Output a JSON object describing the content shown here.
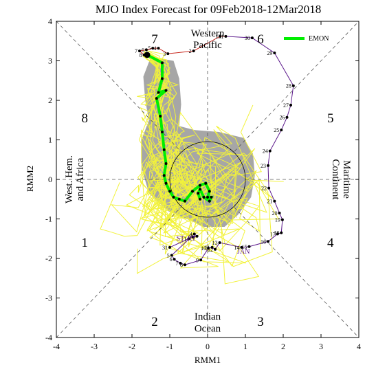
{
  "chart_data": {
    "type": "scatter",
    "title": "MJO Index Forecast for 09Feb2018-12Mar2018",
    "xlabel": "RMM1",
    "ylabel": "RMM2",
    "xlim": [
      -4,
      4
    ],
    "ylim": [
      -4,
      4
    ],
    "xticks": [
      "-4",
      "-3",
      "-2",
      "-1",
      "0",
      "1",
      "2",
      "3",
      "4"
    ],
    "yticks": [
      "-4",
      "-3",
      "-2",
      "-1",
      "0",
      "1",
      "2",
      "3",
      "4"
    ],
    "phases": [
      {
        "label": "1",
        "x": -3.25,
        "y": -1.6
      },
      {
        "label": "2",
        "x": -1.4,
        "y": -3.6
      },
      {
        "label": "3",
        "x": 1.4,
        "y": -3.6
      },
      {
        "label": "4",
        "x": 3.25,
        "y": -1.6
      },
      {
        "label": "5",
        "x": 3.25,
        "y": 1.55
      },
      {
        "label": "6",
        "x": 1.4,
        "y": 3.55
      },
      {
        "label": "7",
        "x": -1.4,
        "y": 3.55
      },
      {
        "label": "8",
        "x": -3.25,
        "y": 1.55
      }
    ],
    "regions": {
      "top": [
        "Western",
        "Pacific"
      ],
      "bottom": [
        "Indian",
        "Ocean"
      ],
      "left": [
        "West. Hem.",
        "and Africa"
      ],
      "right": [
        "Maritime",
        "Continent"
      ]
    },
    "legend": {
      "label": "EMON",
      "color": "#00ee00",
      "position": "top-right"
    },
    "month_labels": [
      {
        "text": "JAN",
        "x": 0.95,
        "y": -1.88
      },
      {
        "text": "ST",
        "x": -0.72,
        "y": -1.55
      },
      {
        "text": "RT",
        "x": -0.42,
        "y": -1.55
      }
    ],
    "observed": {
      "name": "observed",
      "colors": [
        "#5c1a8c",
        "#c8281e"
      ],
      "points": [
        {
          "label": "31",
          "x": -1.0,
          "y": -1.72
        },
        {
          "label": "1",
          "x": -0.5,
          "y": -1.5
        },
        {
          "label": "2",
          "x": -0.38,
          "y": -1.46
        },
        {
          "label": "3",
          "x": -0.28,
          "y": -1.44
        },
        {
          "label": "4",
          "x": -0.35,
          "y": -1.38
        },
        {
          "label": "5",
          "x": -0.95,
          "y": -1.92
        },
        {
          "label": "6",
          "x": -0.88,
          "y": -2.02
        },
        {
          "label": "7",
          "x": -0.72,
          "y": -2.12
        },
        {
          "label": "8",
          "x": -0.6,
          "y": -2.16
        },
        {
          "label": "9",
          "x": -0.18,
          "y": -2.04
        },
        {
          "label": "10",
          "x": 0.02,
          "y": -1.74
        },
        {
          "label": "11",
          "x": 0.12,
          "y": -1.72
        },
        {
          "label": "12",
          "x": 0.2,
          "y": -1.77
        },
        {
          "label": "13",
          "x": 0.32,
          "y": -1.6
        },
        {
          "label": "14",
          "x": 0.9,
          "y": -1.72
        },
        {
          "label": "15",
          "x": 1.1,
          "y": -1.7
        },
        {
          "label": "16",
          "x": 1.6,
          "y": -1.57
        },
        {
          "label": "17",
          "x": 1.85,
          "y": -1.38
        },
        {
          "label": "18",
          "x": 1.95,
          "y": -1.35
        },
        {
          "label": "19",
          "x": 1.98,
          "y": -1.02
        },
        {
          "label": "20",
          "x": 1.9,
          "y": -0.85
        },
        {
          "label": "21",
          "x": 1.77,
          "y": -0.55
        },
        {
          "label": "22",
          "x": 1.62,
          "y": -0.22
        },
        {
          "label": "23",
          "x": 1.6,
          "y": 0.35
        },
        {
          "label": "24",
          "x": 1.65,
          "y": 0.72
        },
        {
          "label": "25",
          "x": 1.95,
          "y": 1.25
        },
        {
          "label": "26",
          "x": 2.1,
          "y": 1.57
        },
        {
          "label": "27",
          "x": 2.2,
          "y": 1.88
        },
        {
          "label": "28",
          "x": 2.27,
          "y": 2.37
        },
        {
          "label": "29",
          "x": 1.77,
          "y": 3.2
        },
        {
          "label": "30",
          "x": 1.18,
          "y": 3.58
        },
        {
          "label": "31",
          "x": 0.48,
          "y": 3.62
        },
        {
          "label": "1",
          "x": 0.33,
          "y": 3.62
        },
        {
          "label": "2",
          "x": -0.37,
          "y": 3.25
        },
        {
          "label": "3",
          "x": -1.05,
          "y": 3.18
        },
        {
          "label": "4",
          "x": -1.3,
          "y": 3.32
        },
        {
          "label": "5",
          "x": -1.45,
          "y": 3.32
        },
        {
          "label": "6",
          "x": -1.62,
          "y": 3.28
        },
        {
          "label": "7",
          "x": -1.8,
          "y": 3.25
        },
        {
          "label": "8",
          "x": -1.68,
          "y": 3.15
        }
      ]
    },
    "ensemble_mean": {
      "name": "EMON",
      "x": [
        -1.6,
        -1.2,
        -1.2,
        -1.3,
        -1.1,
        -1.35,
        -1.25,
        -1.2,
        -1.15,
        -1.1,
        -1.15,
        -1.1,
        -1.0,
        -0.9,
        -0.75,
        -0.6,
        -0.4,
        -0.2,
        -0.05,
        0.05,
        0.0,
        0.1,
        0.05,
        -0.1,
        -0.2,
        -0.25,
        -0.2
      ],
      "y": [
        3.15,
        2.95,
        2.55,
        2.2,
        2.25,
        2.05,
        1.6,
        1.2,
        0.75,
        0.4,
        0.1,
        -0.1,
        -0.3,
        -0.45,
        -0.5,
        -0.55,
        -0.3,
        -0.15,
        -0.1,
        -0.3,
        -0.45,
        -0.45,
        -0.55,
        -0.45,
        -0.25,
        -0.35,
        -0.5
      ]
    },
    "ensemble_members": {
      "count": 20,
      "color": "#f2f23a"
    },
    "uncertainty_area": {
      "color": "#a6a6a6"
    },
    "unit_circle_radius": 1
  }
}
